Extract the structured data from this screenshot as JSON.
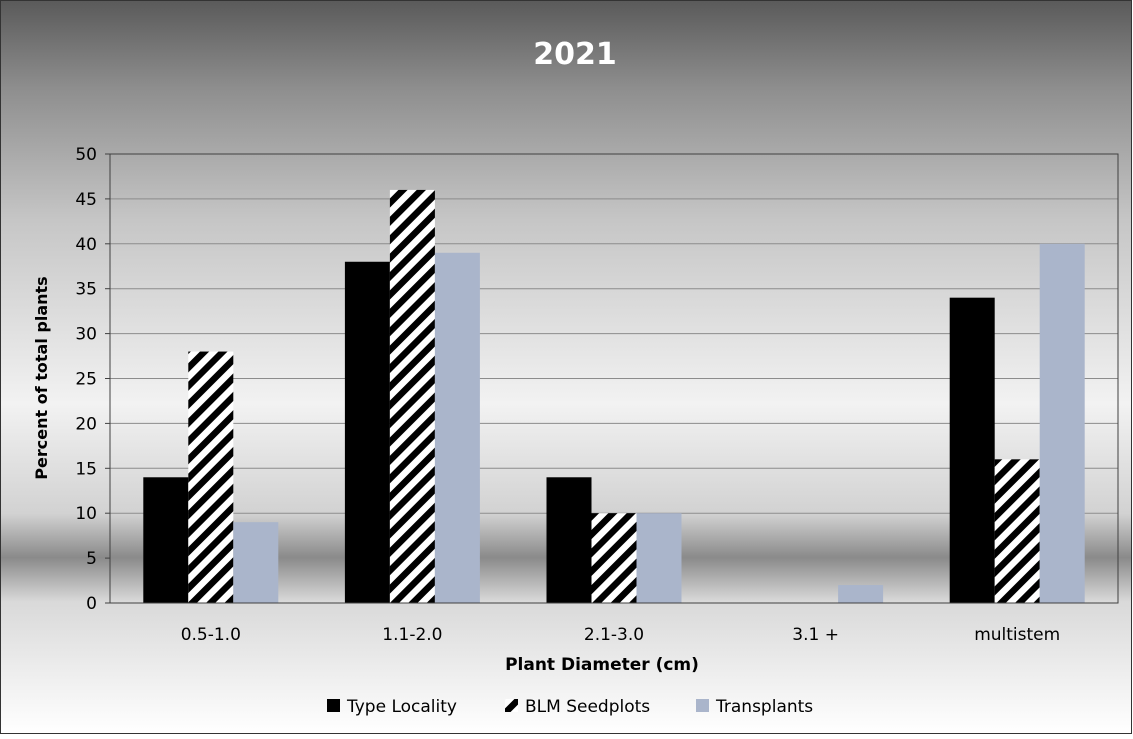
{
  "chart_data": {
    "type": "bar",
    "title": "2021",
    "xlabel": "Plant Diameter (cm)",
    "ylabel": "Percent of total plants",
    "categories": [
      "0.5-1.0",
      "1.1-2.0",
      "2.1-3.0",
      "3.1 +",
      "multistem"
    ],
    "series": [
      {
        "name": "Type Locality",
        "values": [
          14,
          38,
          14,
          0,
          34
        ],
        "color": "#000000",
        "pattern": "solid"
      },
      {
        "name": "BLM Seedplots",
        "values": [
          28,
          46,
          10,
          0,
          16
        ],
        "color": "#000000",
        "pattern": "diagonal-stripes"
      },
      {
        "name": "Transplants",
        "values": [
          9,
          39,
          10,
          2,
          40
        ],
        "color": "#aab5cb",
        "pattern": "solid"
      }
    ],
    "ylim": [
      0,
      50
    ],
    "yticks": [
      0,
      5,
      10,
      15,
      20,
      25,
      30,
      35,
      40,
      45,
      50
    ],
    "grid": true,
    "legend": "bottom"
  }
}
